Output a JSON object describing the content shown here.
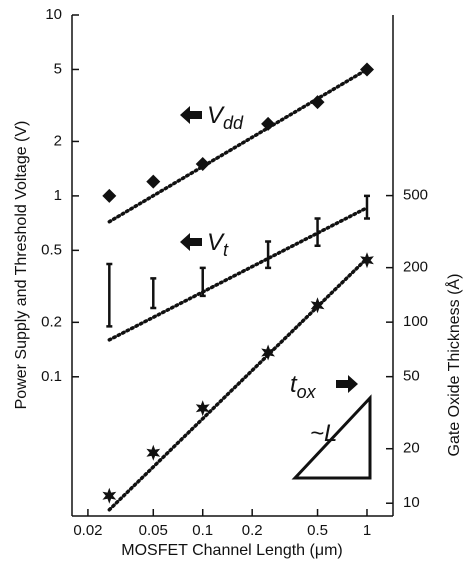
{
  "chart_data": {
    "type": "scatter",
    "x_label": "MOSFET Channel Length (μm)",
    "y_label": "Power Supply and Threshold Voltage (V)",
    "y2_label": "Gate Oxide Thickness (Å)",
    "log_x": true,
    "log_y": true,
    "log_y2": true,
    "xlim": [
      0.016,
      1.44
    ],
    "ylim": [
      0.017,
      10
    ],
    "y2lim": [
      8.5,
      4970
    ],
    "xticks": [
      0.02,
      0.05,
      0.1,
      0.2,
      0.5,
      1
    ],
    "yticks": [
      0.1,
      0.2,
      0.5,
      1,
      2,
      5,
      10
    ],
    "y2ticks": [
      10,
      20,
      50,
      100,
      200,
      500
    ],
    "x": [
      0.027,
      0.05,
      0.1,
      0.25,
      0.5,
      1
    ],
    "series": [
      {
        "name": "Vdd",
        "marker": "diamond",
        "color": "#111",
        "values": [
          1.0,
          1.2,
          1.5,
          2.5,
          3.3,
          5.0
        ]
      },
      {
        "name": "Vt",
        "marker": "range",
        "color": "#111",
        "low": [
          0.19,
          0.24,
          0.28,
          0.4,
          0.53,
          0.75
        ],
        "high": [
          0.42,
          0.35,
          0.4,
          0.56,
          0.75,
          1.0
        ]
      },
      {
        "name": "tox",
        "marker": "star",
        "color": "#111",
        "axis": "y2",
        "values": [
          11,
          19,
          33.5,
          68,
          124,
          220
        ]
      }
    ],
    "trend_lines": [
      {
        "x": [
          0.027,
          1
        ],
        "values": [
          0.72,
          5
        ]
      },
      {
        "x": [
          0.027,
          1
        ],
        "values": [
          0.16,
          0.86
        ]
      },
      {
        "x": [
          0.027,
          1
        ],
        "values": [
          9.2,
          225
        ],
        "axis": "y2"
      }
    ],
    "annotations": [
      {
        "text": "V",
        "sub": "dd"
      },
      {
        "text": "V",
        "sub": "t"
      },
      {
        "text": "t",
        "sub": "ox"
      },
      {
        "text": "~L"
      }
    ]
  }
}
